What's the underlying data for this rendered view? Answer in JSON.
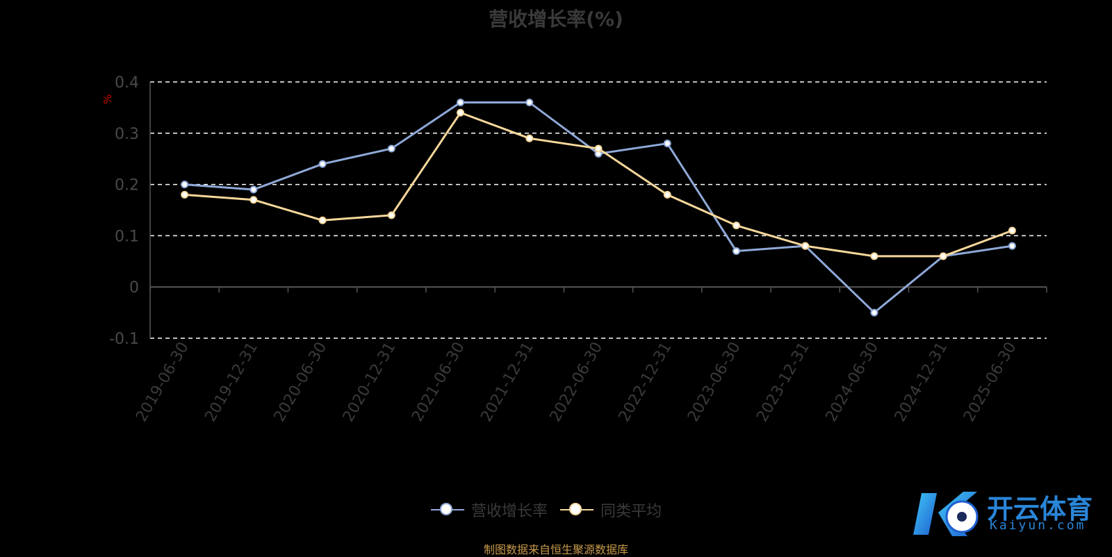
{
  "chart_data": {
    "type": "line",
    "title": "营收增长率(%)",
    "ylabel": "%",
    "categories": [
      "2019-06-30",
      "2019-12-31",
      "2020-06-30",
      "2020-12-31",
      "2021-06-30",
      "2021-12-31",
      "2022-06-30",
      "2022-12-31",
      "2023-06-30",
      "2023-12-31",
      "2024-06-30",
      "2024-12-31",
      "2025-06-30"
    ],
    "series": [
      {
        "name": "营收增长率",
        "color": "#8fa9d8",
        "values": [
          0.2,
          0.19,
          0.24,
          0.27,
          0.36,
          0.36,
          0.26,
          0.28,
          0.07,
          0.08,
          -0.05,
          0.06,
          0.08
        ]
      },
      {
        "name": "同类平均",
        "color": "#f6d79a",
        "values": [
          0.18,
          0.17,
          0.13,
          0.14,
          0.34,
          0.29,
          0.27,
          0.18,
          0.12,
          0.08,
          0.06,
          0.06,
          0.11
        ]
      }
    ],
    "ylim": [
      -0.1,
      0.4
    ],
    "yticks": [
      "0.4",
      "0.3",
      "0.2",
      "0.1",
      "0",
      "-0.1"
    ],
    "ytick_values": [
      0.4,
      0.3,
      0.2,
      0.1,
      0,
      -0.1
    ],
    "grid": true,
    "legend_position": "bottom-center"
  },
  "source_note": "制图数据来自恒生聚源数据库",
  "watermark": {
    "name": "开云体育",
    "domain": "Kaiyun.com"
  }
}
